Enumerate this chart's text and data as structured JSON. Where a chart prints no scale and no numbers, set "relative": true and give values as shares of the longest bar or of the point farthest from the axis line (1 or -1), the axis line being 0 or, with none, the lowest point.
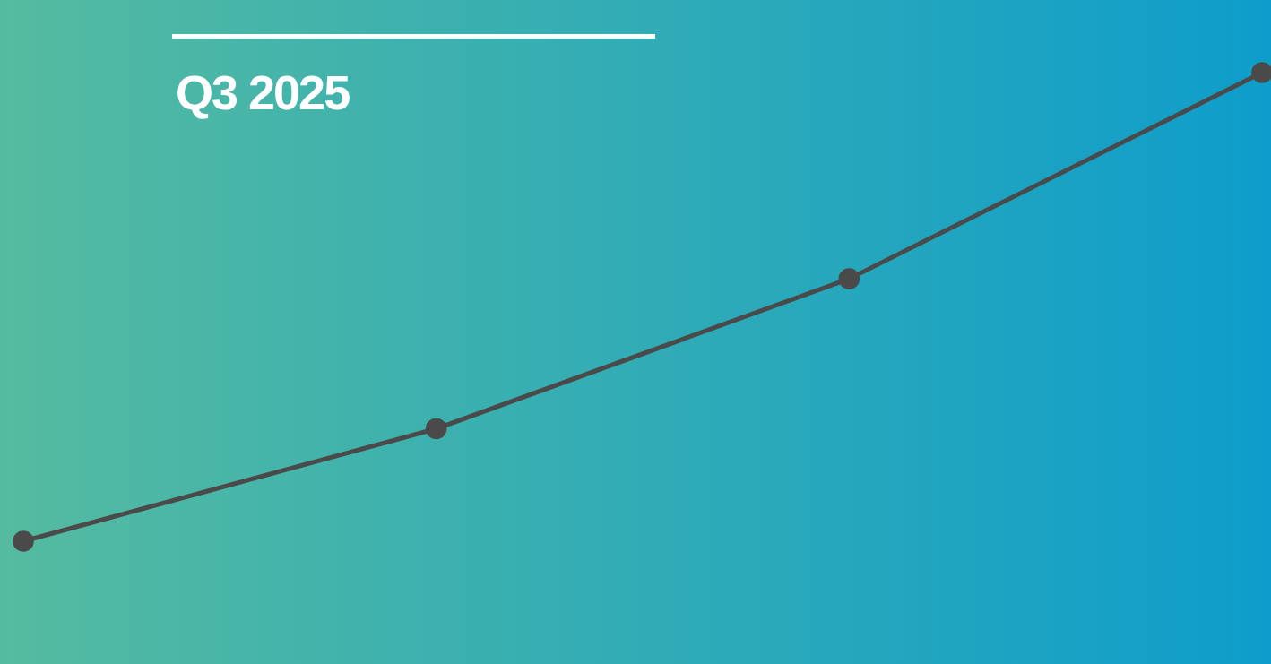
{
  "chart_data": {
    "type": "line",
    "title": "Q3 2025",
    "categories": [
      null,
      null,
      null,
      null
    ],
    "values": [
      0,
      0.24,
      0.56,
      1
    ],
    "color": "#4a4a4a",
    "relative": true,
    "marker": "circle"
  }
}
